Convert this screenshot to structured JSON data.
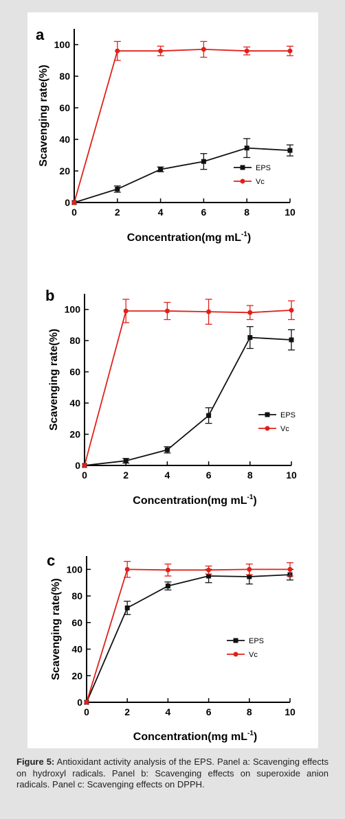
{
  "caption": {
    "label": "Figure 5:",
    "text": "Antioxidant activity analysis of the EPS. Panel a: Scavenging effects on hydroxyl radicals. Panel b: Scavenging effects on superoxide anion radicals. Panel c: Scavenging effects on DPPH."
  },
  "colors": {
    "eps": "#111111",
    "vc": "#e0201a"
  },
  "chart_data": [
    {
      "type": "line",
      "panel_label": "a",
      "xlabel": "Concentration(mg mL",
      "xlabel_sup": "-1",
      "xlabel_end": ")",
      "ylabel": "Scavenging rate(%)",
      "xlim": [
        0,
        10
      ],
      "ylim": [
        0,
        110
      ],
      "xticks": [
        0,
        2,
        4,
        6,
        8,
        10
      ],
      "yticks": [
        0,
        20,
        40,
        60,
        80,
        100
      ],
      "legend_position": "lower-right",
      "series": [
        {
          "name": "EPS",
          "x": [
            0,
            2,
            4,
            6,
            8,
            10
          ],
          "values": [
            0,
            8.5,
            21,
            26,
            34.5,
            33
          ],
          "errors": [
            0,
            2,
            1.5,
            5,
            6,
            3.5
          ]
        },
        {
          "name": "Vc",
          "x": [
            0,
            2,
            4,
            6,
            8,
            10
          ],
          "values": [
            0,
            96,
            96,
            97,
            96,
            96
          ],
          "errors": [
            0,
            6,
            3,
            5,
            2.5,
            3
          ]
        }
      ]
    },
    {
      "type": "line",
      "panel_label": "b",
      "xlabel": "Concentration(mg mL",
      "xlabel_sup": "-1",
      "xlabel_end": ")",
      "ylabel": "Scavenging rate(%)",
      "xlim": [
        0,
        10
      ],
      "ylim": [
        0,
        110
      ],
      "xticks": [
        0,
        2,
        4,
        6,
        8,
        10
      ],
      "yticks": [
        0,
        20,
        40,
        60,
        80,
        100
      ],
      "legend_position": "lower-right",
      "series": [
        {
          "name": "EPS",
          "x": [
            0,
            2,
            4,
            6,
            8,
            10
          ],
          "values": [
            0,
            3,
            10,
            32,
            82,
            80.5
          ],
          "errors": [
            0,
            1.5,
            2,
            5,
            7,
            6.5
          ]
        },
        {
          "name": "Vc",
          "x": [
            0,
            2,
            4,
            6,
            8,
            10
          ],
          "values": [
            0,
            99,
            99,
            98.5,
            98,
            99.5
          ],
          "errors": [
            0,
            7.5,
            5.5,
            8,
            4.5,
            6
          ]
        }
      ]
    },
    {
      "type": "line",
      "panel_label": "c",
      "xlabel": "Concentration(mg mL",
      "xlabel_sup": "-1",
      "xlabel_end": ")",
      "ylabel": "Scavenging rate(%)",
      "xlim": [
        0,
        10
      ],
      "ylim": [
        0,
        110
      ],
      "xticks": [
        0,
        2,
        4,
        6,
        8,
        10
      ],
      "yticks": [
        0,
        20,
        40,
        60,
        80,
        100
      ],
      "legend_position": "center-right",
      "series": [
        {
          "name": "EPS",
          "x": [
            0,
            2,
            4,
            6,
            8,
            10
          ],
          "values": [
            0,
            71,
            87.5,
            95,
            94.5,
            96
          ],
          "errors": [
            0,
            5,
            3,
            5,
            5.5,
            4
          ]
        },
        {
          "name": "Vc",
          "x": [
            0,
            2,
            4,
            6,
            8,
            10
          ],
          "values": [
            0,
            100,
            99.5,
            99.5,
            100,
            100
          ],
          "errors": [
            0,
            6,
            4.5,
            3,
            4,
            5
          ]
        }
      ]
    }
  ]
}
